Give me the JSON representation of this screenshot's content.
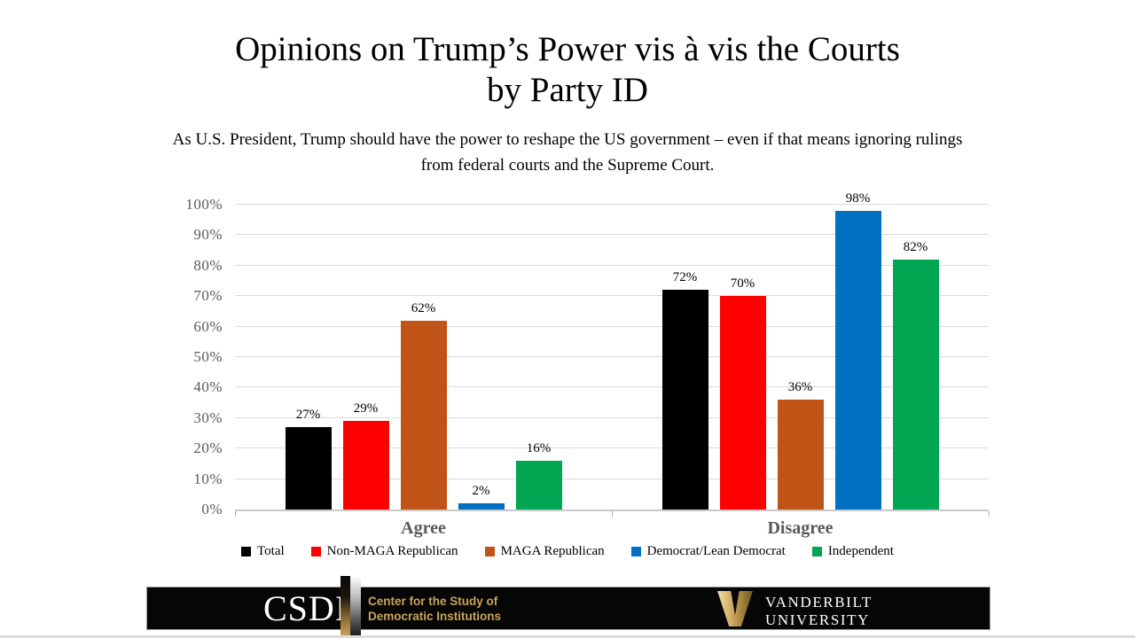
{
  "title": {
    "line1": "Opinions on Trump’s Power vis à vis the Courts",
    "line2": "by Party ID"
  },
  "subtitle": {
    "text": "As U.S. President, Trump should have the power to reshape the US government – even if that means ignoring rulings from federal courts and the Supreme Court."
  },
  "chart_data": {
    "type": "bar",
    "categories": [
      "Agree",
      "Disagree"
    ],
    "series": [
      {
        "name": "Total",
        "color": "#000000",
        "values": [
          27,
          72
        ]
      },
      {
        "name": "Non-MAGA Republican",
        "color": "#ff0000",
        "values": [
          29,
          70
        ]
      },
      {
        "name": "MAGA Republican",
        "color": "#c05316",
        "values": [
          62,
          36
        ]
      },
      {
        "name": "Democrat/Lean Democrat",
        "color": "#0070c0",
        "values": [
          2,
          98
        ]
      },
      {
        "name": "Independent",
        "color": "#00a651",
        "values": [
          16,
          82
        ]
      }
    ],
    "value_suffix": "%",
    "yticks": [
      "0%",
      "10%",
      "20%",
      "30%",
      "40%",
      "50%",
      "60%",
      "70%",
      "80%",
      "90%",
      "100%"
    ],
    "ylim": [
      0,
      100
    ],
    "xlabel": "",
    "ylabel": "",
    "grid": true,
    "legend_position": "bottom"
  },
  "footer": {
    "csdi_acronym": "CSDI",
    "csdi_name_line1": "Center for the Study of",
    "csdi_name_line2": "Democratic Institutions",
    "vanderbilt_line1": "VANDERBILT",
    "vanderbilt_line2": "UNIVERSITY",
    "gold_color": "#c9a45c"
  },
  "colors": {
    "background": "#ffffff",
    "axis_text": "#595959",
    "gridline": "#dadada",
    "data_label": "#000000",
    "footer_bar": "#060606"
  }
}
